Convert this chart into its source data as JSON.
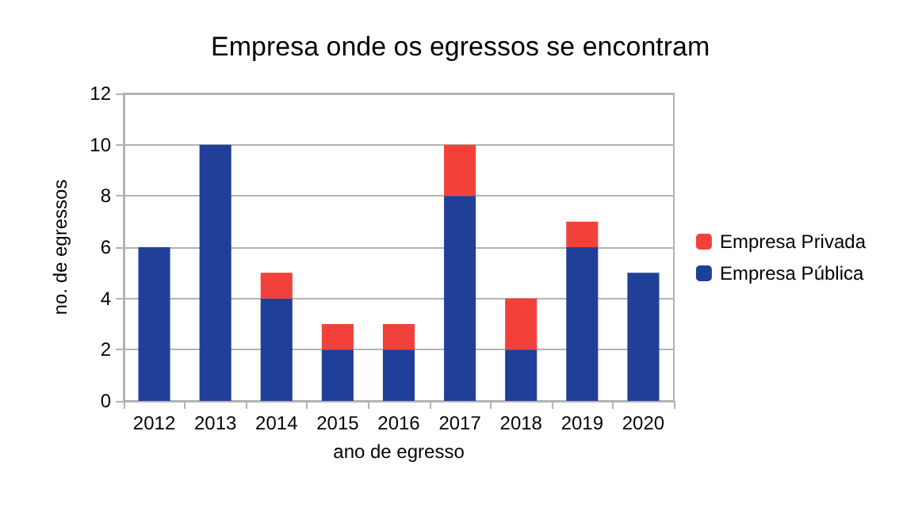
{
  "chart_data": {
    "type": "bar",
    "title": "Empresa onde os egressos se encontram",
    "xlabel": "ano de egresso",
    "ylabel": "no. de egressos",
    "categories": [
      "2012",
      "2013",
      "2014",
      "2015",
      "2016",
      "2017",
      "2018",
      "2019",
      "2020"
    ],
    "stacked": true,
    "series": [
      {
        "name": "Empresa Pública",
        "color": "#203f99",
        "values": [
          6,
          10,
          4,
          2,
          2,
          8,
          2,
          6,
          5
        ]
      },
      {
        "name": "Empresa Privada",
        "color": "#f2413b",
        "values": [
          0,
          0,
          1,
          1,
          1,
          2,
          2,
          1,
          0
        ]
      }
    ],
    "ylim": [
      0,
      12
    ],
    "yticks": [
      0,
      2,
      4,
      6,
      8,
      10,
      12
    ],
    "grid": "y",
    "legend": "right"
  }
}
